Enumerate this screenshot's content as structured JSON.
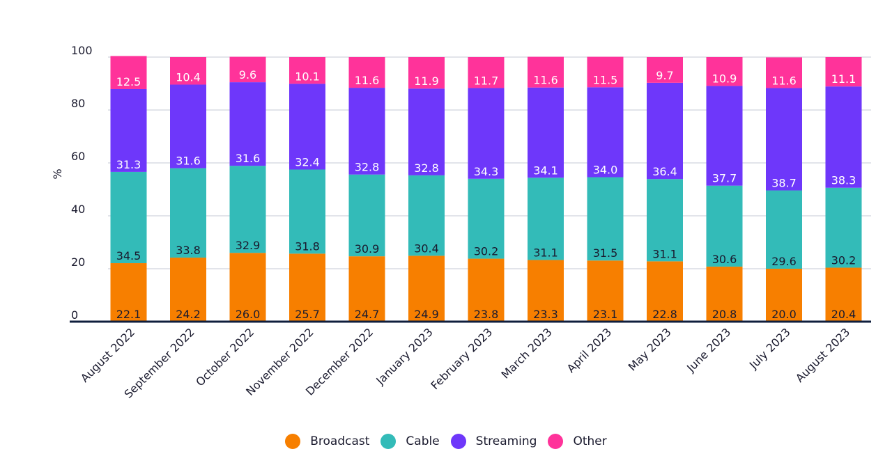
{
  "chart_data": {
    "type": "bar",
    "stacked": true,
    "title": "",
    "xlabel": "",
    "ylabel": "%",
    "ylim": [
      0,
      100
    ],
    "yticks": [
      0,
      20,
      40,
      60,
      80,
      100
    ],
    "grid": true,
    "legend_position": "bottom",
    "categories": [
      "August 2022",
      "September 2022",
      "October 2022",
      "November 2022",
      "December 2022",
      "January 2023",
      "February 2023",
      "March 2023",
      "April 2023",
      "May 2023",
      "June 2023",
      "July 2023",
      "August 2023"
    ],
    "series": [
      {
        "name": "Broadcast",
        "color": "#F77F00",
        "label_color": "#1a1a2e",
        "values": [
          22.1,
          24.2,
          26.0,
          25.7,
          24.7,
          24.9,
          23.8,
          23.3,
          23.1,
          22.8,
          20.8,
          20.0,
          20.4
        ]
      },
      {
        "name": "Cable",
        "color": "#33BBB8",
        "label_color": "#1a1a2e",
        "values": [
          34.5,
          33.8,
          32.9,
          31.8,
          30.9,
          30.4,
          30.2,
          31.1,
          31.5,
          31.1,
          30.6,
          29.6,
          30.2
        ]
      },
      {
        "name": "Streaming",
        "color": "#6E37FA",
        "label_color": "#ffffff",
        "values": [
          31.3,
          31.6,
          31.6,
          32.4,
          32.8,
          32.8,
          34.3,
          34.1,
          34.0,
          36.4,
          37.7,
          38.7,
          38.3
        ]
      },
      {
        "name": "Other",
        "color": "#FF339A",
        "label_color": "#ffffff",
        "values": [
          12.5,
          10.4,
          9.6,
          10.1,
          11.6,
          11.9,
          11.7,
          11.6,
          11.5,
          9.7,
          10.9,
          11.6,
          11.1
        ]
      }
    ]
  }
}
